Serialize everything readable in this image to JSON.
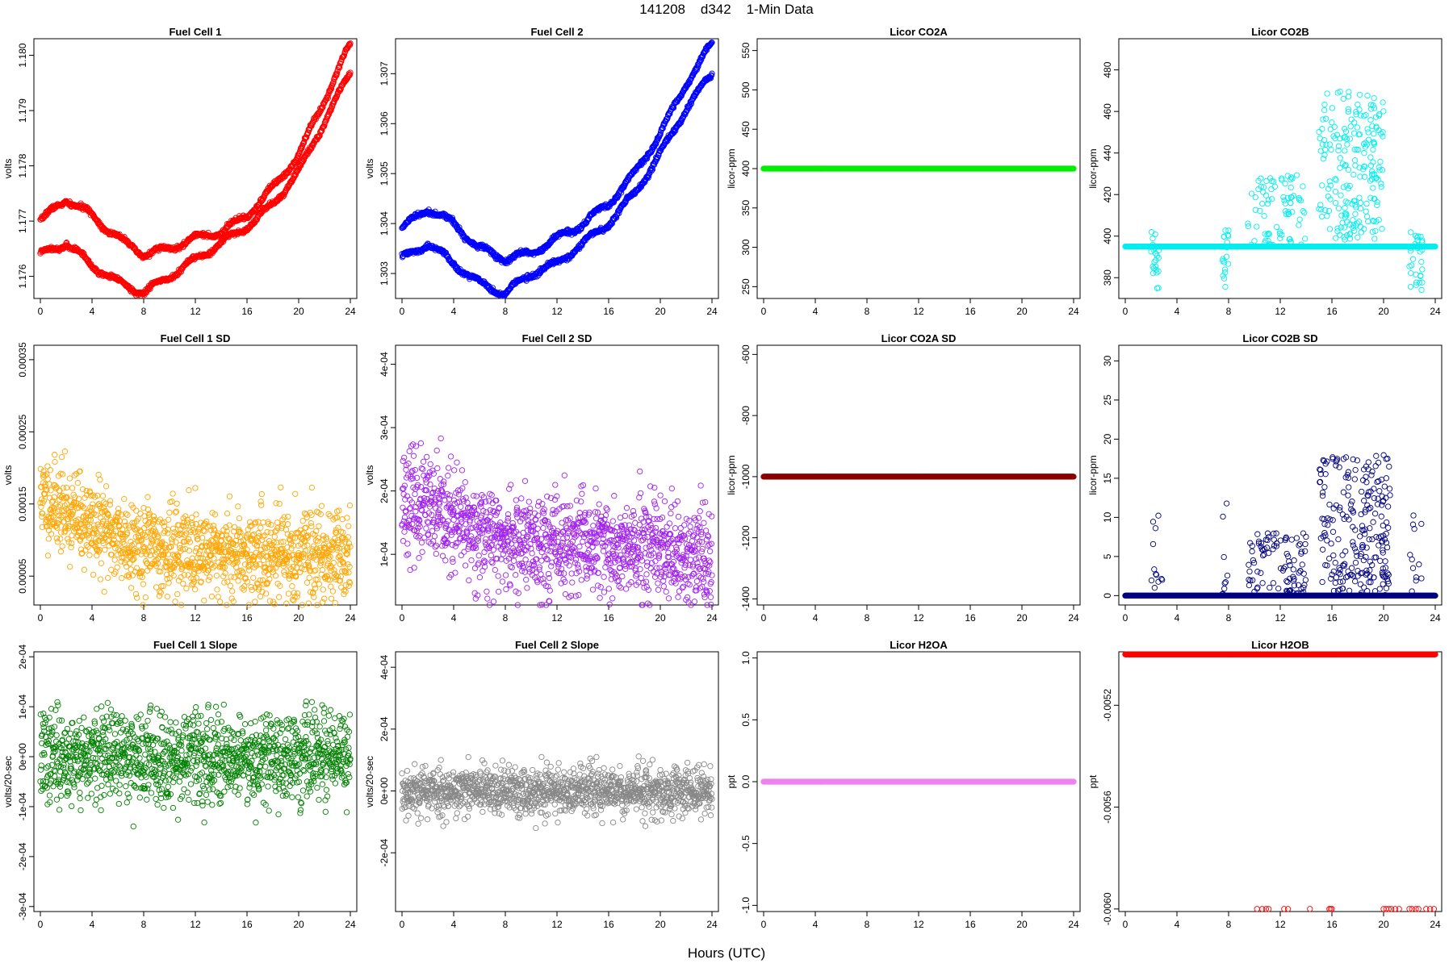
{
  "page": {
    "title": "141208    d342    1-Min Data",
    "xlabel": "Hours (UTC)"
  },
  "chart_data": [
    {
      "type": "scatter",
      "title": "Fuel Cell 1",
      "ylabel": "volts",
      "color": "#ff0000",
      "xlim": [
        0,
        24
      ],
      "ylim": [
        1.1756,
        1.1803
      ],
      "xticks": [
        "0",
        "4",
        "8",
        "12",
        "16",
        "20",
        "24"
      ],
      "yticks": [
        "1.176",
        "1.177",
        "1.178",
        "1.179",
        "1.180"
      ],
      "pattern": "fc",
      "series": [
        {
          "x": [
            0,
            2,
            4,
            6,
            8,
            10,
            12,
            14,
            16,
            18,
            20,
            22,
            24
          ],
          "y": [
            1.177,
            1.1774,
            1.1771,
            1.1767,
            1.1764,
            1.1765,
            1.1767,
            1.1768,
            1.1771,
            1.1776,
            1.1782,
            1.1792,
            1.1802
          ]
        },
        {
          "x": [
            0,
            2,
            4,
            6,
            8,
            10,
            12,
            14,
            16,
            18,
            20,
            22,
            24
          ],
          "y": [
            1.1764,
            1.1766,
            1.1762,
            1.1759,
            1.1757,
            1.176,
            1.1763,
            1.1766,
            1.1769,
            1.1773,
            1.1779,
            1.1788,
            1.1797
          ]
        }
      ]
    },
    {
      "type": "scatter",
      "title": "Fuel Cell 2",
      "ylabel": "volts",
      "color": "#0000ff",
      "xlim": [
        0,
        24
      ],
      "ylim": [
        1.3025,
        1.3077
      ],
      "xticks": [
        "0",
        "4",
        "8",
        "12",
        "16",
        "20",
        "24"
      ],
      "yticks": [
        "1.303",
        "1.304",
        "1.305",
        "1.306",
        "1.307"
      ],
      "pattern": "fc",
      "series": [
        {
          "x": [
            0,
            2,
            4,
            6,
            8,
            10,
            12,
            14,
            16,
            18,
            20,
            22,
            24
          ],
          "y": [
            1.3039,
            1.3043,
            1.304,
            1.3035,
            1.3033,
            1.3034,
            1.3037,
            1.304,
            1.3044,
            1.305,
            1.3058,
            1.3068,
            1.3076
          ]
        },
        {
          "x": [
            0,
            2,
            4,
            6,
            8,
            10,
            12,
            14,
            16,
            18,
            20,
            22,
            24
          ],
          "y": [
            1.3033,
            1.3036,
            1.3032,
            1.3028,
            1.3026,
            1.303,
            1.3032,
            1.3036,
            1.304,
            1.3046,
            1.3054,
            1.3063,
            1.307
          ]
        }
      ]
    },
    {
      "type": "scatter",
      "title": "Licor CO2A",
      "ylabel": "licor-ppm",
      "color": "#00ee00",
      "xlim": [
        0,
        24
      ],
      "ylim": [
        235,
        565
      ],
      "xticks": [
        "0",
        "4",
        "8",
        "12",
        "16",
        "20",
        "24"
      ],
      "yticks": [
        "250",
        "300",
        "350",
        "400",
        "450",
        "500",
        "550"
      ],
      "pattern": "const",
      "value": 400
    },
    {
      "type": "scatter",
      "title": "Licor CO2B",
      "ylabel": "licor-ppm",
      "color": "#00eeee",
      "xlim": [
        0,
        24
      ],
      "ylim": [
        370,
        495
      ],
      "xticks": [
        "0",
        "4",
        "8",
        "12",
        "16",
        "20",
        "24"
      ],
      "yticks": [
        "380",
        "400",
        "420",
        "440",
        "460",
        "480"
      ],
      "pattern": "base-spikes",
      "base": 395,
      "seed": 71,
      "ranges": [
        [
          2,
          2.6,
          0.6,
          403,
          374
        ],
        [
          7.5,
          8,
          0.6,
          403,
          374
        ],
        [
          9.5,
          14,
          0.3,
          395,
          430
        ],
        [
          15,
          20,
          0.7,
          398,
          470
        ],
        [
          22,
          23,
          0.5,
          403,
          374
        ]
      ]
    },
    {
      "type": "scatter",
      "title": "Fuel Cell 1 SD",
      "ylabel": "volts",
      "color": "#ffa500",
      "xlim": [
        0,
        24
      ],
      "ylim": [
        1e-05,
        0.00037
      ],
      "xticks": [
        "0",
        "4",
        "8",
        "12",
        "16",
        "20",
        "24"
      ],
      "yticks": [
        "0.00005",
        "0.00015",
        "0.00025",
        "0.00035"
      ],
      "pattern": "noise",
      "seed": 11,
      "n": 1300,
      "center": [
        [
          0,
          0.00016
        ],
        [
          4,
          0.00012
        ],
        [
          8,
          9e-05
        ],
        [
          16,
          8e-05
        ],
        [
          24,
          8e-05
        ]
      ],
      "spread": 3e-05
    },
    {
      "type": "scatter",
      "title": "Fuel Cell 2 SD",
      "ylabel": "volts",
      "color": "#a020f0",
      "xlim": [
        0,
        24
      ],
      "ylim": [
        2e-05,
        0.00043
      ],
      "xticks": [
        "0",
        "4",
        "8",
        "12",
        "16",
        "20",
        "24"
      ],
      "yticks": [
        "1e-04",
        "2e-04",
        "3e-04",
        "4e-04"
      ],
      "pattern": "noise",
      "seed": 23,
      "n": 1300,
      "center": [
        [
          0,
          0.00019
        ],
        [
          4,
          0.00015
        ],
        [
          8,
          0.00012
        ],
        [
          16,
          0.00011
        ],
        [
          24,
          9e-05
        ]
      ],
      "spread": 4e-05
    },
    {
      "type": "scatter",
      "title": "Licor CO2A SD",
      "ylabel": "licor-ppm",
      "color": "#8b0000",
      "xlim": [
        0,
        24
      ],
      "ylim": [
        -1420,
        -570
      ],
      "xticks": [
        "0",
        "4",
        "8",
        "12",
        "16",
        "20",
        "24"
      ],
      "yticks": [
        "-1400",
        "-1200",
        "-1000",
        "-800",
        "-600"
      ],
      "pattern": "const",
      "value": -1000
    },
    {
      "type": "scatter",
      "title": "Licor CO2B SD",
      "ylabel": "licor-ppm",
      "color": "#000080",
      "xlim": [
        0,
        24
      ],
      "ylim": [
        -1.2,
        32
      ],
      "xticks": [
        "0",
        "4",
        "8",
        "12",
        "16",
        "20",
        "24"
      ],
      "yticks": [
        "0",
        "5",
        "10",
        "15",
        "20",
        "25",
        "30"
      ],
      "pattern": "base-spikes",
      "base": 0,
      "seed": 97,
      "ranges": [
        [
          2,
          3,
          0.2,
          0,
          13
        ],
        [
          7.5,
          8,
          0.3,
          0,
          13
        ],
        [
          9.5,
          14,
          0.35,
          0,
          8
        ],
        [
          15,
          20.5,
          0.7,
          0,
          18
        ],
        [
          22,
          23,
          0.2,
          0,
          12
        ]
      ]
    },
    {
      "type": "scatter",
      "title": "Fuel Cell 1 Slope",
      "ylabel": "volts/20-sec",
      "color": "#008000",
      "xlim": [
        0,
        24
      ],
      "ylim": [
        -0.00031,
        0.00021
      ],
      "xticks": [
        "0",
        "4",
        "8",
        "12",
        "16",
        "20",
        "24"
      ],
      "yticks": [
        "-3e-04",
        "-2e-04",
        "-1e-04",
        "0e+00",
        "1e-04",
        "2e-04"
      ],
      "pattern": "noise",
      "seed": 37,
      "n": 1300,
      "center": [
        [
          0,
          0.0
        ],
        [
          24,
          0.0
        ]
      ],
      "spread": 4.5e-05
    },
    {
      "type": "scatter",
      "title": "Fuel Cell 2 Slope",
      "ylabel": "volts/20-sec",
      "color": "#888888",
      "xlim": [
        0,
        24
      ],
      "ylim": [
        -0.00039,
        0.00045
      ],
      "xticks": [
        "0",
        "4",
        "8",
        "12",
        "16",
        "20",
        "24"
      ],
      "yticks": [
        "-2e-04",
        "0e+00",
        "2e-04",
        "4e-04"
      ],
      "pattern": "noise",
      "seed": 53,
      "n": 1300,
      "center": [
        [
          0,
          0.0
        ],
        [
          24,
          0.0
        ]
      ],
      "spread": 4e-05
    },
    {
      "type": "scatter",
      "title": "Licor H2OA",
      "ylabel": "ppt",
      "color": "#ee82ee",
      "xlim": [
        0,
        24
      ],
      "ylim": [
        -1.05,
        1.05
      ],
      "xticks": [
        "0",
        "4",
        "8",
        "12",
        "16",
        "20",
        "24"
      ],
      "yticks": [
        "-1.0",
        "-0.5",
        "0.0",
        "0.5",
        "1.0"
      ],
      "pattern": "const",
      "value": 0
    },
    {
      "type": "scatter",
      "title": "Licor H2OB",
      "ylabel": "ppt",
      "color": "#ff0000",
      "xlim": [
        0,
        24
      ],
      "ylim": [
        -0.00601,
        -0.00499
      ],
      "xticks": [
        "0",
        "4",
        "8",
        "12",
        "16",
        "20",
        "24"
      ],
      "yticks": [
        "-0.0060",
        "-0.0056",
        "-0.0052"
      ],
      "pattern": "const-low",
      "value": -0.005,
      "low": -0.006,
      "low_x": [
        10.2,
        10.6,
        10.9,
        11.1,
        12.3,
        12.6,
        14.3,
        15.8,
        15.9,
        16.0,
        20.0,
        20.2,
        20.4,
        20.6,
        20.9,
        21.2,
        22.0,
        22.2,
        22.5,
        22.7,
        23.3,
        23.6,
        23.9
      ]
    }
  ]
}
